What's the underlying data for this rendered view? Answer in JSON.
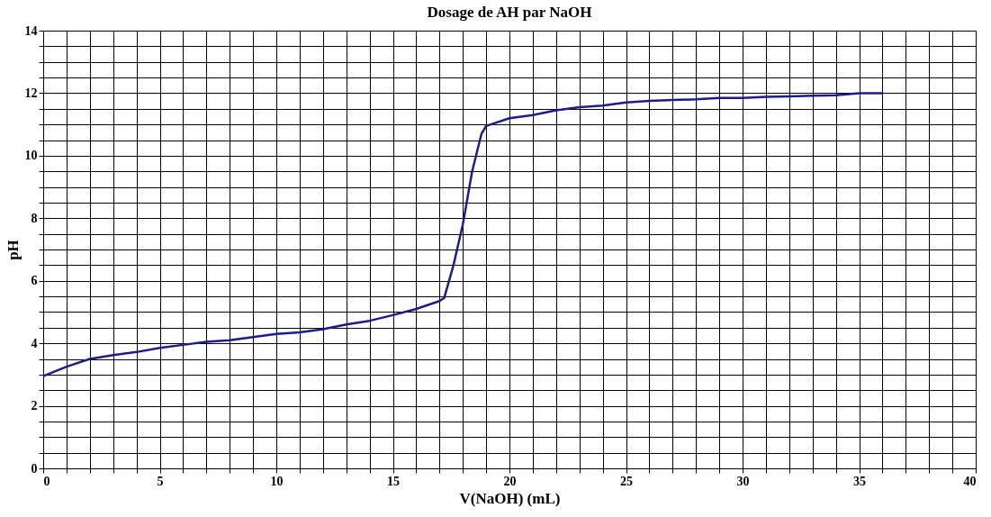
{
  "chart_data": {
    "type": "line",
    "title": "Dosage de AH par NaOH",
    "xlabel": "V(NaOH) (mL)",
    "ylabel": "pH",
    "x": [
      0,
      1,
      2,
      3,
      4,
      5,
      6,
      7,
      8,
      9,
      10,
      11,
      12,
      13,
      14,
      15,
      16,
      17,
      17.2,
      17.6,
      18,
      18.4,
      18.8,
      19,
      20,
      21,
      22,
      23,
      24,
      25,
      26,
      27,
      28,
      29,
      30,
      31,
      32,
      33,
      34,
      35,
      36
    ],
    "series": [
      {
        "color": "#1c1c8a",
        "values": [
          2.95,
          3.25,
          3.5,
          3.62,
          3.72,
          3.85,
          3.95,
          4.05,
          4.1,
          4.2,
          4.3,
          4.35,
          4.45,
          4.6,
          4.72,
          4.9,
          5.1,
          5.35,
          5.45,
          6.5,
          7.8,
          9.5,
          10.7,
          10.95,
          11.2,
          11.3,
          11.45,
          11.55,
          11.6,
          11.7,
          11.75,
          11.78,
          11.8,
          11.85,
          11.85,
          11.88,
          11.9,
          11.92,
          11.93,
          12.0,
          12.0
        ]
      }
    ],
    "xlim": [
      0,
      40
    ],
    "ylim": [
      0,
      14
    ],
    "xticks": [
      0,
      {
        "value": 1,
        "label": null
      },
      {
        "value": 2,
        "label": null
      },
      {
        "value": 3,
        "label": null
      },
      {
        "value": 4,
        "label": null
      },
      5,
      {
        "value": 6,
        "label": null
      },
      {
        "value": 7,
        "label": null
      },
      {
        "value": 8,
        "label": null
      },
      {
        "value": 9,
        "label": null
      },
      10,
      {
        "value": 11,
        "label": null
      },
      {
        "value": 12,
        "label": null
      },
      {
        "value": 13,
        "label": null
      },
      {
        "value": 14,
        "label": null
      },
      15,
      {
        "value": 16,
        "label": null
      },
      {
        "value": 17,
        "label": null
      },
      {
        "value": 18,
        "label": null
      },
      {
        "value": 19,
        "label": null
      },
      20,
      {
        "value": 21,
        "label": null
      },
      {
        "value": 22,
        "label": null
      },
      {
        "value": 23,
        "label": null
      },
      {
        "value": 24,
        "label": null
      },
      25,
      {
        "value": 26,
        "label": null
      },
      {
        "value": 27,
        "label": null
      },
      {
        "value": 28,
        "label": null
      },
      {
        "value": 29,
        "label": null
      },
      30,
      {
        "value": 31,
        "label": null
      },
      {
        "value": 32,
        "label": null
      },
      {
        "value": 33,
        "label": null
      },
      {
        "value": 34,
        "label": null
      },
      35,
      {
        "value": 36,
        "label": null
      },
      {
        "value": 37,
        "label": null
      },
      {
        "value": 38,
        "label": null
      },
      {
        "value": 39,
        "label": null
      },
      40
    ],
    "yticks": [
      0,
      {
        "value": 0.5,
        "label": null
      },
      {
        "value": 1,
        "label": null
      },
      {
        "value": 1.5,
        "label": null
      },
      2,
      {
        "value": 2.5,
        "label": null
      },
      {
        "value": 3,
        "label": null
      },
      {
        "value": 3.5,
        "label": null
      },
      4,
      {
        "value": 4.5,
        "label": null
      },
      {
        "value": 5,
        "label": null
      },
      {
        "value": 5.5,
        "label": null
      },
      6,
      {
        "value": 6.5,
        "label": null
      },
      {
        "value": 7,
        "label": null
      },
      {
        "value": 7.5,
        "label": null
      },
      8,
      {
        "value": 8.5,
        "label": null
      },
      {
        "value": 9,
        "label": null
      },
      {
        "value": 9.5,
        "label": null
      },
      10,
      {
        "value": 10.5,
        "label": null
      },
      {
        "value": 11,
        "label": null
      },
      {
        "value": 11.5,
        "label": null
      },
      12,
      {
        "value": 12.5,
        "label": null
      },
      {
        "value": 13,
        "label": null
      },
      {
        "value": 13.5,
        "label": null
      },
      14
    ],
    "grid": true,
    "marker": "none",
    "line_style": "solid"
  }
}
